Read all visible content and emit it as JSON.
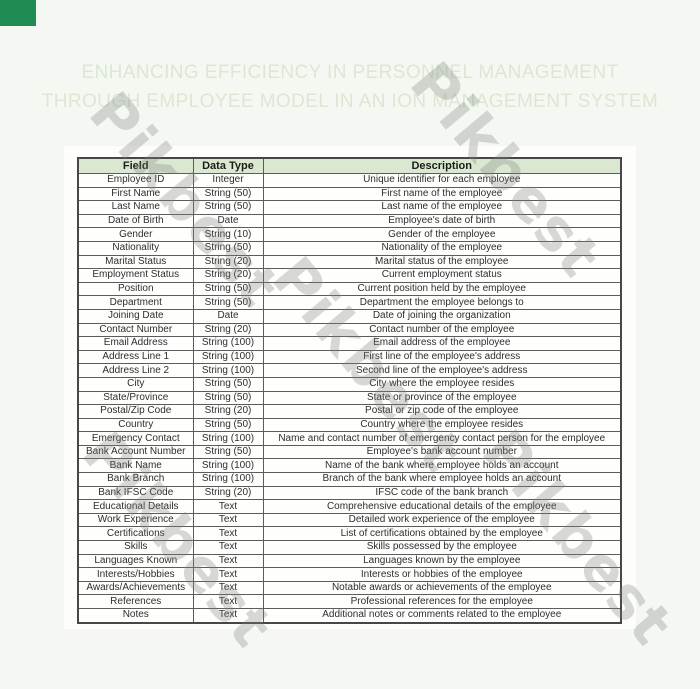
{
  "header": {
    "title_line1": "ENHANCING EFFICIENCY IN PERSONNEL MANAGEMENT",
    "title_line2": "THROUGH EMPLOYEE MODEL IN AN ION MANAGEMENT SYSTEM"
  },
  "watermark": {
    "text": "Pikbest"
  },
  "colors": {
    "accent_green_square": "#1f8b55",
    "title_text": "#dbe7d3",
    "table_header_bg": "#dbe8d1",
    "table_border": "#5c5c5c",
    "page_background": "#f5f8f2"
  },
  "table": {
    "headers": [
      "Field",
      "Data Type",
      "Description"
    ],
    "rows": [
      [
        "Employee ID",
        "Integer",
        "Unique identifier for each employee"
      ],
      [
        "First Name",
        "String (50)",
        "First name of the employee"
      ],
      [
        "Last Name",
        "String (50)",
        "Last name of the employee"
      ],
      [
        "Date of Birth",
        "Date",
        "Employee's date of birth"
      ],
      [
        "Gender",
        "String (10)",
        "Gender of the employee"
      ],
      [
        "Nationality",
        "String (50)",
        "Nationality of the employee"
      ],
      [
        "Marital Status",
        "String (20)",
        "Marital status of the employee"
      ],
      [
        "Employment Status",
        "String (20)",
        "Current employment status"
      ],
      [
        "Position",
        "String (50)",
        "Current position held by the employee"
      ],
      [
        "Department",
        "String (50)",
        "Department the employee belongs to"
      ],
      [
        "Joining Date",
        "Date",
        "Date of joining the organization"
      ],
      [
        "Contact Number",
        "String (20)",
        "Contact number of the employee"
      ],
      [
        "Email Address",
        "String (100)",
        "Email address of the employee"
      ],
      [
        "Address Line 1",
        "String (100)",
        "First line of the employee's address"
      ],
      [
        "Address Line 2",
        "String (100)",
        "Second line of the employee's address"
      ],
      [
        "City",
        "String (50)",
        "City where the employee resides"
      ],
      [
        "State/Province",
        "String (50)",
        "State or province of the employee"
      ],
      [
        "Postal/Zip Code",
        "String (20)",
        "Postal or zip code of the employee"
      ],
      [
        "Country",
        "String (50)",
        "Country where the employee resides"
      ],
      [
        "Emergency Contact",
        "String (100)",
        "Name and contact number of emergency contact person for the employee"
      ],
      [
        "Bank Account Number",
        "String (50)",
        "Employee's bank account number"
      ],
      [
        "Bank Name",
        "String (100)",
        "Name of the bank where employee holds an account"
      ],
      [
        "Bank Branch",
        "String (100)",
        "Branch of the bank where employee holds an account"
      ],
      [
        "Bank IFSC Code",
        "String (20)",
        "IFSC code of the bank branch"
      ],
      [
        "Educational Details",
        "Text",
        "Comprehensive educational details of the employee"
      ],
      [
        "Work Experience",
        "Text",
        "Detailed work experience of the employee"
      ],
      [
        "Certifications",
        "Text",
        "List of certifications obtained by the employee"
      ],
      [
        "Skills",
        "Text",
        "Skills possessed by the employee"
      ],
      [
        "Languages Known",
        "Text",
        "Languages known by the employee"
      ],
      [
        "Interests/Hobbies",
        "Text",
        "Interests or hobbies of the employee"
      ],
      [
        "Awards/Achievements",
        "Text",
        "Notable awards or achievements of the employee"
      ],
      [
        "References",
        "Text",
        "Professional references for the employee"
      ],
      [
        "Notes",
        "Text",
        "Additional notes or comments related to the employee"
      ]
    ]
  }
}
